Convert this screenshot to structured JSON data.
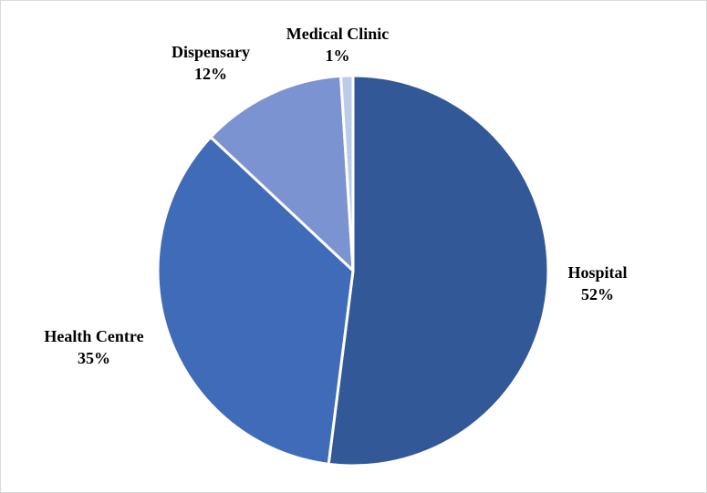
{
  "chart_data": {
    "type": "pie",
    "categories": [
      "Hospital",
      "Health Centre",
      "Dispensary",
      "Medical Clinic"
    ],
    "values": [
      52,
      35,
      12,
      1
    ],
    "labels": [
      "52%",
      "35%",
      "12%",
      "1%"
    ],
    "colors": [
      "#325897",
      "#3f6bb8",
      "#7b93d0",
      "#bccbe8"
    ],
    "legend": "none"
  }
}
